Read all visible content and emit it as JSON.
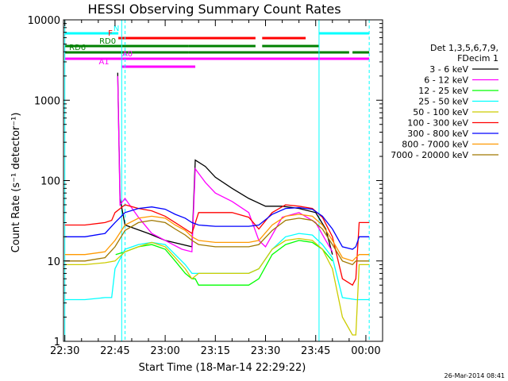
{
  "chart_data": {
    "type": "line",
    "title": "HESSI Observing Summary Count Rates",
    "xlabel": "Start Time (18-Mar-14 22:29:22)",
    "ylabel": "Count Rate (s⁻¹ detector⁻¹)",
    "x_unit": "minutes",
    "xlim": [
      -0.4,
      95
    ],
    "ylim": [
      1,
      10000
    ],
    "yscale": "log",
    "x_ticks": [
      {
        "x": 0,
        "label": "22:30"
      },
      {
        "x": 15,
        "label": "22:45"
      },
      {
        "x": 30,
        "label": "23:00"
      },
      {
        "x": 45,
        "label": "23:15"
      },
      {
        "x": 60,
        "label": "23:30"
      },
      {
        "x": 75,
        "label": "23:45"
      },
      {
        "x": 90,
        "label": "00:00"
      }
    ],
    "y_ticks": [
      {
        "y": 1,
        "label": "1"
      },
      {
        "y": 10,
        "label": "10"
      },
      {
        "y": 100,
        "label": "100"
      },
      {
        "y": 1000,
        "label": "1000"
      },
      {
        "y": 10000,
        "label": "10000"
      }
    ],
    "legend_header": [
      "Det 1,3,5,6,7,9,",
      "FDecim 1"
    ],
    "legend_position": "right",
    "series": [
      {
        "name": "3 - 6 keV",
        "color": "#000000",
        "points": [
          [
            15.5,
            null
          ],
          [
            15.8,
            2200
          ],
          [
            16.5,
            60
          ],
          [
            18,
            28
          ],
          [
            25,
            22
          ],
          [
            30,
            18
          ],
          [
            38,
            15
          ],
          [
            39,
            180
          ],
          [
            42,
            150
          ],
          [
            45,
            110
          ],
          [
            50,
            80
          ],
          [
            55,
            60
          ],
          [
            60,
            48
          ],
          [
            65,
            48
          ],
          [
            70,
            45
          ],
          [
            75,
            40
          ],
          [
            78,
            25
          ],
          [
            80,
            12
          ]
        ]
      },
      {
        "name": "6 - 12 keV",
        "color": "#ff00ff",
        "points": [
          [
            15.5,
            null
          ],
          [
            15.8,
            2000
          ],
          [
            16.5,
            50
          ],
          [
            18,
            60
          ],
          [
            22,
            35
          ],
          [
            26,
            22
          ],
          [
            30,
            18
          ],
          [
            35,
            14
          ],
          [
            38,
            13
          ],
          [
            39,
            140
          ],
          [
            42,
            95
          ],
          [
            45,
            70
          ],
          [
            50,
            55
          ],
          [
            55,
            40
          ],
          [
            58,
            18
          ],
          [
            60,
            15
          ],
          [
            65,
            35
          ],
          [
            70,
            40
          ],
          [
            75,
            30
          ],
          [
            78,
            18
          ],
          [
            80,
            13
          ]
        ]
      },
      {
        "name": "12 - 25 keV",
        "color": "#00ff00",
        "points": [
          [
            15,
            null
          ],
          [
            15.2,
            12
          ],
          [
            18,
            13
          ],
          [
            22,
            15
          ],
          [
            26,
            16
          ],
          [
            30,
            14
          ],
          [
            33,
            10
          ],
          [
            36,
            7
          ],
          [
            38,
            6
          ],
          [
            39,
            6
          ],
          [
            40,
            5
          ],
          [
            45,
            5
          ],
          [
            50,
            5
          ],
          [
            55,
            5
          ],
          [
            58,
            6
          ],
          [
            62,
            12
          ],
          [
            66,
            16
          ],
          [
            70,
            18
          ],
          [
            74,
            17
          ],
          [
            77,
            14
          ],
          [
            80,
            10
          ]
        ]
      },
      {
        "name": "25 - 50 keV",
        "color": "#00ffff",
        "points": [
          [
            0,
            3.3
          ],
          [
            6,
            3.3
          ],
          [
            12,
            3.5
          ],
          [
            14,
            3.5
          ],
          [
            15,
            8
          ],
          [
            18,
            14
          ],
          [
            22,
            16
          ],
          [
            26,
            17
          ],
          [
            30,
            16
          ],
          [
            33,
            12
          ],
          [
            36,
            9
          ],
          [
            38,
            7
          ],
          [
            40,
            7
          ],
          [
            45,
            7
          ],
          [
            50,
            7
          ],
          [
            55,
            7
          ],
          [
            58,
            8
          ],
          [
            62,
            14
          ],
          [
            66,
            20
          ],
          [
            70,
            22
          ],
          [
            74,
            21
          ],
          [
            77,
            16
          ],
          [
            80,
            11
          ],
          [
            83,
            3.5
          ],
          [
            87,
            3.3
          ],
          [
            91,
            3.3
          ]
        ]
      },
      {
        "name": "50 - 100 keV",
        "color": "#cccc00",
        "points": [
          [
            0,
            9
          ],
          [
            6,
            9
          ],
          [
            12,
            9.5
          ],
          [
            15,
            10
          ],
          [
            18,
            13
          ],
          [
            22,
            15
          ],
          [
            26,
            17
          ],
          [
            30,
            15
          ],
          [
            33,
            11
          ],
          [
            36,
            8
          ],
          [
            38,
            6
          ],
          [
            40,
            7
          ],
          [
            45,
            7
          ],
          [
            50,
            7
          ],
          [
            55,
            7
          ],
          [
            58,
            8
          ],
          [
            62,
            14
          ],
          [
            66,
            18
          ],
          [
            70,
            19
          ],
          [
            74,
            18
          ],
          [
            77,
            14
          ],
          [
            80,
            8
          ],
          [
            83,
            2
          ],
          [
            86,
            1.2
          ],
          [
            87,
            1.2
          ],
          [
            88,
            9
          ],
          [
            91,
            9
          ]
        ]
      },
      {
        "name": "100 - 300 keV",
        "color": "#ff0000",
        "points": [
          [
            0,
            28
          ],
          [
            6,
            28
          ],
          [
            12,
            30
          ],
          [
            14,
            32
          ],
          [
            15,
            40
          ],
          [
            18,
            50
          ],
          [
            22,
            45
          ],
          [
            26,
            42
          ],
          [
            30,
            36
          ],
          [
            33,
            30
          ],
          [
            36,
            25
          ],
          [
            38,
            22
          ],
          [
            40,
            40
          ],
          [
            45,
            40
          ],
          [
            50,
            40
          ],
          [
            55,
            35
          ],
          [
            58,
            25
          ],
          [
            62,
            40
          ],
          [
            66,
            50
          ],
          [
            70,
            48
          ],
          [
            74,
            45
          ],
          [
            77,
            35
          ],
          [
            80,
            20
          ],
          [
            83,
            6
          ],
          [
            86,
            5
          ],
          [
            87,
            6
          ],
          [
            88,
            30
          ],
          [
            91,
            30
          ]
        ]
      },
      {
        "name": "300 - 800 keV",
        "color": "#0000ff",
        "points": [
          [
            0,
            20
          ],
          [
            6,
            20
          ],
          [
            12,
            22
          ],
          [
            15,
            30
          ],
          [
            18,
            40
          ],
          [
            22,
            45
          ],
          [
            26,
            47
          ],
          [
            30,
            44
          ],
          [
            33,
            38
          ],
          [
            36,
            34
          ],
          [
            38,
            30
          ],
          [
            40,
            28
          ],
          [
            45,
            27
          ],
          [
            50,
            27
          ],
          [
            55,
            27
          ],
          [
            58,
            28
          ],
          [
            62,
            38
          ],
          [
            66,
            45
          ],
          [
            70,
            46
          ],
          [
            74,
            44
          ],
          [
            77,
            36
          ],
          [
            80,
            25
          ],
          [
            83,
            15
          ],
          [
            86,
            14
          ],
          [
            87,
            15
          ],
          [
            88,
            20
          ],
          [
            91,
            20
          ]
        ]
      },
      {
        "name": "800 - 7000 keV",
        "color": "#ff9900",
        "points": [
          [
            0,
            12
          ],
          [
            6,
            12
          ],
          [
            12,
            13
          ],
          [
            15,
            18
          ],
          [
            18,
            28
          ],
          [
            22,
            34
          ],
          [
            26,
            36
          ],
          [
            30,
            34
          ],
          [
            33,
            28
          ],
          [
            36,
            24
          ],
          [
            38,
            20
          ],
          [
            40,
            18
          ],
          [
            45,
            17
          ],
          [
            50,
            17
          ],
          [
            55,
            17
          ],
          [
            58,
            18
          ],
          [
            62,
            28
          ],
          [
            66,
            36
          ],
          [
            70,
            38
          ],
          [
            74,
            36
          ],
          [
            77,
            28
          ],
          [
            80,
            18
          ],
          [
            83,
            11
          ],
          [
            86,
            10
          ],
          [
            87,
            11
          ],
          [
            88,
            12
          ],
          [
            91,
            12
          ]
        ]
      },
      {
        "name": "7000 - 20000 keV",
        "color": "#a07800",
        "points": [
          [
            0,
            10
          ],
          [
            6,
            10
          ],
          [
            12,
            11
          ],
          [
            15,
            15
          ],
          [
            18,
            24
          ],
          [
            22,
            30
          ],
          [
            26,
            32
          ],
          [
            30,
            30
          ],
          [
            33,
            25
          ],
          [
            36,
            21
          ],
          [
            38,
            18
          ],
          [
            40,
            16
          ],
          [
            45,
            15
          ],
          [
            50,
            15
          ],
          [
            55,
            15
          ],
          [
            58,
            16
          ],
          [
            62,
            24
          ],
          [
            66,
            32
          ],
          [
            70,
            34
          ],
          [
            74,
            32
          ],
          [
            77,
            25
          ],
          [
            80,
            16
          ],
          [
            83,
            10
          ],
          [
            86,
            9
          ],
          [
            87,
            10
          ],
          [
            88,
            10
          ],
          [
            91,
            10
          ]
        ]
      }
    ],
    "flags": [
      {
        "name": "N",
        "color": "#00ffff",
        "label_x": 17,
        "level": 5,
        "segments": [
          [
            0,
            16
          ],
          [
            76,
            91
          ]
        ]
      },
      {
        "name": "F",
        "color": "#ff0000",
        "label_x": 15,
        "level": 4,
        "segments": [
          [
            16,
            57
          ],
          [
            59,
            72
          ]
        ]
      },
      {
        "name": "RD0",
        "color": "#008000",
        "label_x": 16,
        "level": 3,
        "segments": [
          [
            0,
            37
          ],
          [
            37,
            57
          ],
          [
            59,
            76
          ]
        ]
      },
      {
        "name": "RD6",
        "color": "#008000",
        "label_x": 7,
        "level": 2,
        "segments": [
          [
            0,
            37
          ],
          [
            37,
            85
          ],
          [
            86,
            91
          ]
        ]
      },
      {
        "name": "A0",
        "color": "#ff00ff",
        "label_x": 21,
        "level": 1,
        "segments": [
          [
            0,
            91
          ]
        ]
      },
      {
        "name": "A1",
        "color": "#ff00ff",
        "label_x": 14,
        "level": 0,
        "segments": [
          [
            17,
            39
          ]
        ]
      }
    ],
    "vlines": [
      {
        "x": 0,
        "color": "#00ffff",
        "dashed": false
      },
      {
        "x": 17,
        "color": "#00ffff",
        "dashed": false
      },
      {
        "x": 18,
        "color": "#00ffff",
        "dashed": true
      },
      {
        "x": 76,
        "color": "#00ffff",
        "dashed": false
      },
      {
        "x": 91,
        "color": "#00ffff",
        "dashed": true
      }
    ],
    "timestamp": "26-Mar-2014 08:41"
  }
}
